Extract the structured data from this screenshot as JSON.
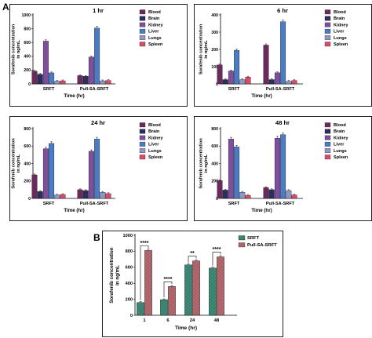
{
  "figure": {
    "label_a": "A",
    "label_b": "B"
  },
  "colors": {
    "Blood": "#6b2a5e",
    "Brain": "#2c2f5a",
    "Kidney": "#7d4f9c",
    "Liver": "#4a7cc4",
    "Lungs": "#8f97c2",
    "Spleen": "#d94a6a",
    "SRFT": "#3f8a78",
    "Pull-SA-SRFT": "#b46a6e"
  },
  "chart_data": [
    {
      "type": "bar",
      "title": "1 hr",
      "ylabel": "Sorafenib concentration in ng/mL",
      "xlabel": "Time (hr)",
      "ylim": [
        0,
        1000
      ],
      "yticks": [
        0,
        200,
        400,
        600,
        800,
        1000
      ],
      "categories": [
        "SRFT",
        "Pull-SA-SRFT"
      ],
      "series": [
        {
          "name": "Blood",
          "values": [
            185,
            120
          ]
        },
        {
          "name": "Brain",
          "values": [
            140,
            110
          ]
        },
        {
          "name": "Kidney",
          "values": [
            620,
            390
          ]
        },
        {
          "name": "Liver",
          "values": [
            160,
            810
          ]
        },
        {
          "name": "Lungs",
          "values": [
            40,
            45
          ]
        },
        {
          "name": "Spleen",
          "values": [
            45,
            50
          ]
        }
      ],
      "legend": "right"
    },
    {
      "type": "bar",
      "title": "6 hr",
      "ylabel": "Sorafenib concentration in ng/mL",
      "xlabel": "Time (hr)",
      "ylim": [
        0,
        400
      ],
      "yticks": [
        0,
        100,
        200,
        300,
        400
      ],
      "categories": [
        "SRFT",
        "Pull-SA-SRFT"
      ],
      "series": [
        {
          "name": "Blood",
          "values": [
            110,
            225
          ]
        },
        {
          "name": "Brain",
          "values": [
            25,
            25
          ]
        },
        {
          "name": "Kidney",
          "values": [
            75,
            65
          ]
        },
        {
          "name": "Liver",
          "values": [
            195,
            360
          ]
        },
        {
          "name": "Lungs",
          "values": [
            25,
            15
          ]
        },
        {
          "name": "Spleen",
          "values": [
            40,
            20
          ]
        }
      ],
      "legend": "right"
    },
    {
      "type": "bar",
      "title": "24 hr",
      "ylabel": "Sorafenib concentration in ng/mL",
      "xlabel": "Time (hr)",
      "ylim": [
        0,
        800
      ],
      "yticks": [
        0,
        200,
        400,
        600,
        800
      ],
      "categories": [
        "SRFT",
        "Pull-SA-SRFT"
      ],
      "series": [
        {
          "name": "Blood",
          "values": [
            270,
            100
          ]
        },
        {
          "name": "Brain",
          "values": [
            80,
            90
          ]
        },
        {
          "name": "Kidney",
          "values": [
            570,
            540
          ]
        },
        {
          "name": "Liver",
          "values": [
            630,
            680
          ]
        },
        {
          "name": "Lungs",
          "values": [
            40,
            70
          ]
        },
        {
          "name": "Spleen",
          "values": [
            45,
            55
          ]
        }
      ],
      "legend": "right"
    },
    {
      "type": "bar",
      "title": "48 hr",
      "ylabel": "Sorafenib concentration in ng/mL",
      "xlabel": "Time (hr)",
      "ylim": [
        0,
        800
      ],
      "yticks": [
        0,
        200,
        400,
        600,
        800
      ],
      "categories": [
        "SRFT",
        "Pull-SA-SRFT"
      ],
      "series": [
        {
          "name": "Blood",
          "values": [
            205,
            125
          ]
        },
        {
          "name": "Brain",
          "values": [
            95,
            100
          ]
        },
        {
          "name": "Kidney",
          "values": [
            680,
            690
          ]
        },
        {
          "name": "Liver",
          "values": [
            590,
            730
          ]
        },
        {
          "name": "Lungs",
          "values": [
            70,
            90
          ]
        },
        {
          "name": "Spleen",
          "values": [
            35,
            40
          ]
        }
      ],
      "legend": "right"
    },
    {
      "type": "bar",
      "title": "",
      "ylabel": "Sorafenib concentration in ng/mL",
      "xlabel": "Time (hr)",
      "ylim": [
        0,
        1000
      ],
      "yticks": [
        0,
        200,
        400,
        600,
        800,
        1000
      ],
      "categories": [
        "1",
        "6",
        "24",
        "48"
      ],
      "series": [
        {
          "name": "SRFT",
          "values": [
            160,
            195,
            630,
            590
          ]
        },
        {
          "name": "Pull-SA-SRFT",
          "values": [
            810,
            360,
            680,
            730
          ]
        }
      ],
      "significance": [
        "****",
        "****",
        "**",
        "****"
      ],
      "legend": "top-right"
    }
  ]
}
